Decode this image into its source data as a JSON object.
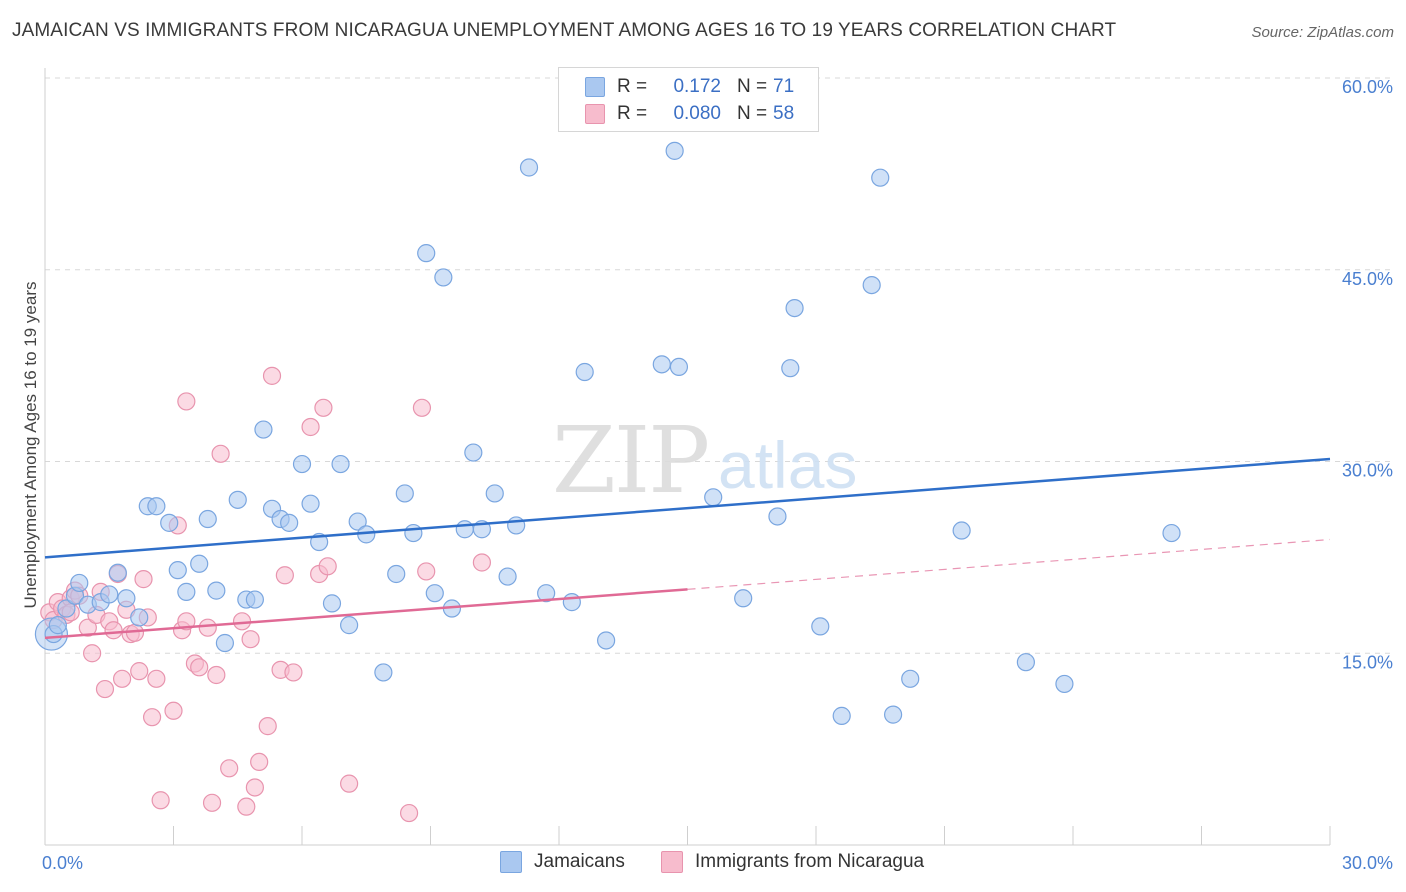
{
  "header": {
    "title": "JAMAICAN VS IMMIGRANTS FROM NICARAGUA UNEMPLOYMENT AMONG AGES 16 TO 19 YEARS CORRELATION CHART",
    "source": "Source: ZipAtlas.com"
  },
  "watermark": {
    "zip": "ZIP",
    "atlas": "atlas"
  },
  "legend": {
    "rows": [
      {
        "r_label": "R =",
        "r_value": "0.172",
        "n_label": "N =",
        "n_value": "71"
      },
      {
        "r_label": "R =",
        "r_value": "0.080",
        "n_label": "N =",
        "n_value": "58"
      }
    ]
  },
  "colors": {
    "jamaicans_fill": "#aac8f0",
    "jamaicans_stroke": "#7aa6e0",
    "jamaicans_line": "#2f6fc9",
    "nicaragua_fill": "#f7bccd",
    "nicaragua_stroke": "#e894ae",
    "nicaragua_line": "#e06a95",
    "grid": "#d8d8d8",
    "tick_text": "#4a7fd0"
  },
  "chart_data": {
    "type": "scatter",
    "title": "JAMAICAN VS IMMIGRANTS FROM NICARAGUA UNEMPLOYMENT AMONG AGES 16 TO 19 YEARS CORRELATION CHART",
    "xlabel": "",
    "ylabel": "Unemployment Among Ages 16 to 19 years",
    "xlim": [
      0,
      30
    ],
    "ylim": [
      0,
      60
    ],
    "x_tick_labels": [
      "0.0%",
      "30.0%"
    ],
    "y_ticks": [
      15,
      30,
      45,
      60
    ],
    "y_tick_labels": [
      "15.0%",
      "30.0%",
      "45.0%",
      "60.0%"
    ],
    "grid": true,
    "legend_position": "top-center",
    "series": [
      {
        "name": "Jamaicans",
        "R": 0.172,
        "N": 71,
        "trend": {
          "x": [
            0,
            30
          ],
          "y": [
            22.5,
            30.2
          ]
        },
        "points": [
          [
            0.2,
            16.5
          ],
          [
            0.3,
            17.2
          ],
          [
            0.5,
            18.5
          ],
          [
            0.7,
            19.5
          ],
          [
            0.8,
            20.5
          ],
          [
            1.0,
            18.8
          ],
          [
            1.3,
            19.0
          ],
          [
            1.5,
            19.6
          ],
          [
            1.7,
            21.3
          ],
          [
            1.9,
            19.3
          ],
          [
            2.2,
            17.8
          ],
          [
            2.4,
            26.5
          ],
          [
            2.6,
            26.5
          ],
          [
            2.9,
            25.2
          ],
          [
            3.1,
            21.5
          ],
          [
            3.3,
            19.8
          ],
          [
            3.6,
            22.0
          ],
          [
            3.8,
            25.5
          ],
          [
            4.0,
            19.9
          ],
          [
            4.2,
            15.8
          ],
          [
            4.5,
            27.0
          ],
          [
            4.7,
            19.2
          ],
          [
            4.9,
            19.2
          ],
          [
            5.1,
            32.5
          ],
          [
            5.3,
            26.3
          ],
          [
            5.5,
            25.5
          ],
          [
            5.7,
            25.2
          ],
          [
            6.0,
            29.8
          ],
          [
            6.2,
            26.7
          ],
          [
            6.4,
            23.7
          ],
          [
            6.7,
            18.9
          ],
          [
            6.9,
            29.8
          ],
          [
            7.1,
            17.2
          ],
          [
            7.3,
            25.3
          ],
          [
            7.5,
            24.3
          ],
          [
            7.9,
            13.5
          ],
          [
            8.2,
            21.2
          ],
          [
            8.4,
            27.5
          ],
          [
            8.6,
            24.4
          ],
          [
            8.9,
            46.3
          ],
          [
            9.1,
            19.7
          ],
          [
            9.3,
            44.4
          ],
          [
            9.5,
            18.5
          ],
          [
            9.8,
            24.7
          ],
          [
            10.0,
            30.7
          ],
          [
            10.2,
            24.7
          ],
          [
            10.5,
            27.5
          ],
          [
            10.8,
            21.0
          ],
          [
            11.0,
            25.0
          ],
          [
            11.3,
            53.0
          ],
          [
            11.7,
            19.7
          ],
          [
            12.3,
            19.0
          ],
          [
            12.6,
            37.0
          ],
          [
            13.1,
            16.0
          ],
          [
            14.4,
            37.6
          ],
          [
            14.7,
            54.3
          ],
          [
            14.8,
            37.4
          ],
          [
            15.6,
            27.2
          ],
          [
            16.3,
            19.3
          ],
          [
            17.1,
            25.7
          ],
          [
            17.4,
            37.3
          ],
          [
            17.5,
            42.0
          ],
          [
            18.1,
            17.1
          ],
          [
            18.6,
            10.1
          ],
          [
            19.3,
            43.8
          ],
          [
            19.5,
            52.2
          ],
          [
            19.8,
            10.2
          ],
          [
            20.2,
            13.0
          ],
          [
            21.4,
            24.6
          ],
          [
            22.9,
            14.3
          ],
          [
            23.8,
            12.6
          ],
          [
            26.3,
            24.4
          ]
        ]
      },
      {
        "name": "Immigrants from Nicaragua",
        "R": 0.08,
        "N": 58,
        "trend": {
          "x": [
            0,
            15
          ],
          "y": [
            16.2,
            20.0
          ]
        },
        "trend_extension": {
          "x": [
            15,
            30
          ],
          "y": [
            20.0,
            23.9
          ]
        },
        "points": [
          [
            0.1,
            18.2
          ],
          [
            0.2,
            17.6
          ],
          [
            0.3,
            19.0
          ],
          [
            0.4,
            18.5
          ],
          [
            0.5,
            18.0
          ],
          [
            0.6,
            19.3
          ],
          [
            0.7,
            19.9
          ],
          [
            0.8,
            19.5
          ],
          [
            1.0,
            17.0
          ],
          [
            1.1,
            15.0
          ],
          [
            1.2,
            18.0
          ],
          [
            1.3,
            19.8
          ],
          [
            1.4,
            12.2
          ],
          [
            1.5,
            17.5
          ],
          [
            1.6,
            16.8
          ],
          [
            1.7,
            21.2
          ],
          [
            1.8,
            13.0
          ],
          [
            1.9,
            18.4
          ],
          [
            2.0,
            16.5
          ],
          [
            2.1,
            16.6
          ],
          [
            2.2,
            13.6
          ],
          [
            2.3,
            20.8
          ],
          [
            2.4,
            17.8
          ],
          [
            2.5,
            10.0
          ],
          [
            2.6,
            13.0
          ],
          [
            2.7,
            3.5
          ],
          [
            3.0,
            10.5
          ],
          [
            3.1,
            25.0
          ],
          [
            3.2,
            16.8
          ],
          [
            3.3,
            17.5
          ],
          [
            3.3,
            34.7
          ],
          [
            3.5,
            14.2
          ],
          [
            3.6,
            13.9
          ],
          [
            3.8,
            17.0
          ],
          [
            3.9,
            3.3
          ],
          [
            4.0,
            13.3
          ],
          [
            4.1,
            30.6
          ],
          [
            4.3,
            6.0
          ],
          [
            4.6,
            17.5
          ],
          [
            4.7,
            3.0
          ],
          [
            4.8,
            16.1
          ],
          [
            4.9,
            4.5
          ],
          [
            5.0,
            6.5
          ],
          [
            5.2,
            9.3
          ],
          [
            5.3,
            36.7
          ],
          [
            5.5,
            13.7
          ],
          [
            5.6,
            21.1
          ],
          [
            5.8,
            13.5
          ],
          [
            6.2,
            32.7
          ],
          [
            6.4,
            21.2
          ],
          [
            6.5,
            34.2
          ],
          [
            6.6,
            21.8
          ],
          [
            7.1,
            4.8
          ],
          [
            8.5,
            2.5
          ],
          [
            8.8,
            34.2
          ],
          [
            8.9,
            21.4
          ],
          [
            10.2,
            22.1
          ],
          [
            0.6,
            18.2
          ]
        ]
      }
    ]
  },
  "bottom_legend": {
    "items": [
      {
        "label": "Jamaicans"
      },
      {
        "label": "Immigrants from Nicaragua"
      }
    ]
  }
}
